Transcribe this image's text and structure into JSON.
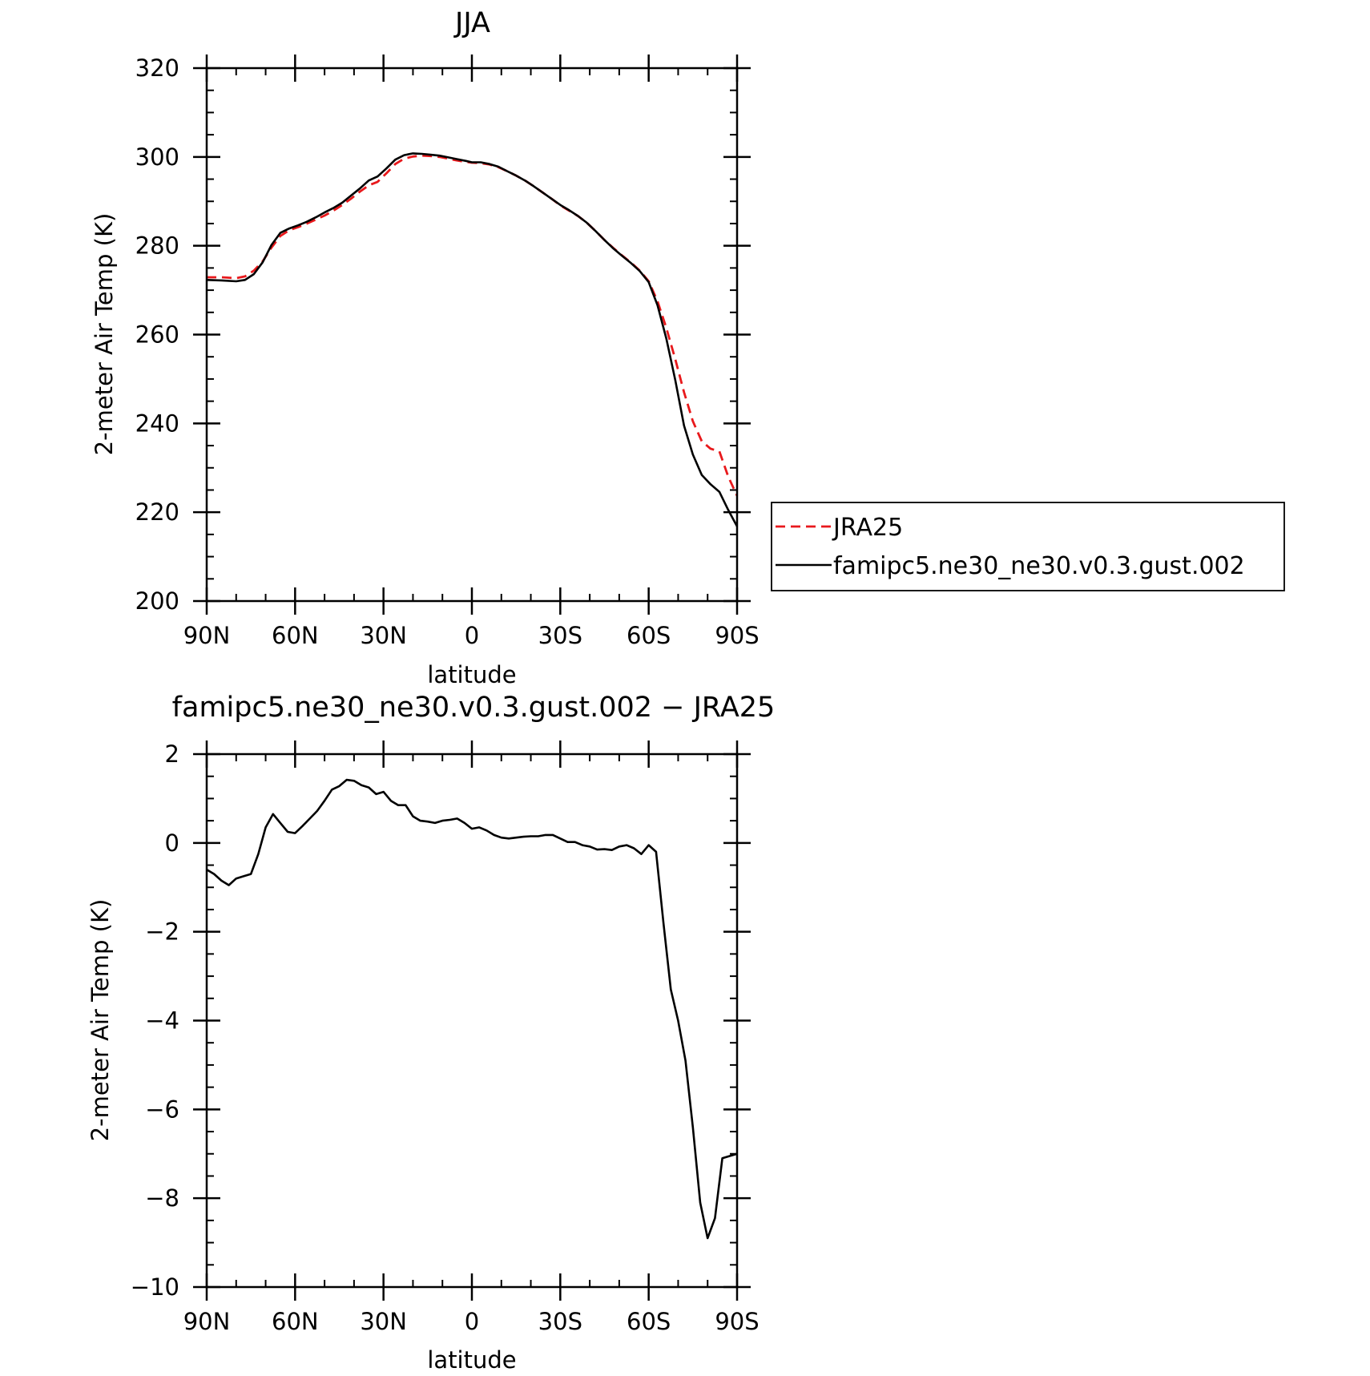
{
  "chart_data": [
    {
      "type": "line",
      "title": "JJA",
      "xlabel": "latitude",
      "ylabel": "2-meter Air Temp (K)",
      "xlim": [
        90,
        -90
      ],
      "ylim": [
        200,
        320
      ],
      "x_ticks": [
        90,
        60,
        30,
        0,
        -30,
        -60,
        -90
      ],
      "x_tick_labels": [
        "90N",
        "60N",
        "30N",
        "0",
        "30S",
        "60S",
        "90S"
      ],
      "y_ticks": [
        200,
        220,
        240,
        260,
        280,
        300,
        320
      ],
      "y_tick_labels": [
        "200",
        "220",
        "240",
        "260",
        "280",
        "300",
        "320"
      ],
      "legend": "right",
      "series": [
        {
          "name": "JRA25",
          "color": "#e8191c",
          "dash": "dashed",
          "x": [
            90,
            85,
            80,
            77,
            74,
            71,
            68,
            65,
            62,
            59,
            56,
            53,
            50,
            47,
            44,
            41,
            38,
            35,
            32,
            29,
            26,
            23,
            20,
            17,
            14,
            11,
            8,
            5,
            2,
            0,
            -3,
            -6,
            -9,
            -12,
            -15,
            -18,
            -21,
            -24,
            -27,
            -30,
            -33,
            -36,
            -39,
            -42,
            -45,
            -48,
            -51,
            -54,
            -57,
            -60,
            -63,
            -66,
            -69,
            -72,
            -75,
            -78,
            -81,
            -84,
            -87,
            -90
          ],
          "values": [
            272.9,
            272.9,
            272.7,
            273.1,
            274.4,
            276.5,
            279.6,
            282.2,
            283.5,
            284.2,
            285.0,
            285.9,
            286.8,
            287.9,
            289.2,
            290.6,
            292.2,
            293.6,
            294.4,
            296.3,
            298.4,
            299.6,
            300.1,
            300.3,
            300.2,
            300.0,
            299.6,
            299.2,
            298.9,
            298.7,
            298.6,
            298.3,
            297.7,
            296.8,
            295.8,
            294.7,
            293.4,
            292.0,
            290.6,
            289.1,
            287.9,
            286.7,
            285.2,
            283.3,
            281.3,
            279.5,
            277.8,
            276.2,
            274.4,
            272.0,
            267.5,
            261.5,
            254.5,
            247.0,
            240.5,
            236.0,
            234.3,
            233.7,
            228.0,
            223.7
          ]
        },
        {
          "name": "famipc5.ne30_ne30.v0.3.gust.002",
          "color": "#000000",
          "dash": "solid",
          "x": [
            90,
            85,
            80,
            77,
            74,
            71,
            68,
            65,
            62,
            59,
            56,
            53,
            50,
            47,
            44,
            41,
            38,
            35,
            32,
            29,
            26,
            23,
            20,
            17,
            14,
            11,
            8,
            5,
            2,
            0,
            -3,
            -6,
            -9,
            -12,
            -15,
            -18,
            -21,
            -24,
            -27,
            -30,
            -33,
            -36,
            -39,
            -42,
            -45,
            -48,
            -51,
            -54,
            -57,
            -60,
            -63,
            -66,
            -69,
            -72,
            -75,
            -78,
            -81,
            -84,
            -87,
            -90
          ],
          "values": [
            272.3,
            272.2,
            272.0,
            272.3,
            273.6,
            276.3,
            280.2,
            282.9,
            283.9,
            284.6,
            285.4,
            286.4,
            287.5,
            288.5,
            289.7,
            291.3,
            292.9,
            294.7,
            295.6,
            297.4,
            299.4,
            300.4,
            300.8,
            300.7,
            300.5,
            300.3,
            299.9,
            299.5,
            299.1,
            298.8,
            298.8,
            298.4,
            297.8,
            296.8,
            295.8,
            294.7,
            293.4,
            292.0,
            290.6,
            289.2,
            288.0,
            286.7,
            285.2,
            283.3,
            281.3,
            279.4,
            277.7,
            276.1,
            274.3,
            271.8,
            266.6,
            259.1,
            249.8,
            239.5,
            233.0,
            228.4,
            226.3,
            224.6,
            220.5,
            216.8
          ]
        }
      ]
    },
    {
      "type": "line",
      "title": "famipc5.ne30_ne30.v0.3.gust.002 − JRA25",
      "xlabel": "latitude",
      "ylabel": "2-meter Air Temp (K)",
      "xlim": [
        90,
        -90
      ],
      "ylim": [
        -10,
        2
      ],
      "x_ticks": [
        90,
        60,
        30,
        0,
        -30,
        -60,
        -90
      ],
      "x_tick_labels": [
        "90N",
        "60N",
        "30N",
        "0",
        "30S",
        "60S",
        "90S"
      ],
      "y_ticks": [
        -10,
        -8,
        -6,
        -4,
        -2,
        0,
        2
      ],
      "y_tick_labels": [
        "−10",
        "−8",
        "−6",
        "−4",
        "−2",
        "0",
        "2"
      ],
      "series": [
        {
          "color": "#000000",
          "dash": "solid",
          "x": [
            90,
            87.5,
            85,
            82.5,
            80,
            77.5,
            75,
            72.5,
            70,
            67.5,
            65,
            62.5,
            60,
            57.5,
            55,
            52.5,
            50,
            47.5,
            45,
            42.5,
            40,
            37.5,
            35,
            32.5,
            30,
            27.5,
            25,
            22.5,
            20,
            17.5,
            15,
            12.5,
            10,
            7.5,
            5,
            2.5,
            0,
            -2.5,
            -5,
            -7.5,
            -10,
            -12.5,
            -15,
            -17.5,
            -20,
            -22.5,
            -25,
            -27.5,
            -30,
            -32.5,
            -35,
            -37.5,
            -40,
            -42.5,
            -45,
            -47.5,
            -50,
            -52.5,
            -55,
            -57.5,
            -60,
            -62.5,
            -65,
            -67.5,
            -70,
            -72.5,
            -75,
            -77.5,
            -80,
            -82.5,
            -85,
            -87.5,
            -90
          ],
          "values": [
            -0.6,
            -0.7,
            -0.85,
            -0.95,
            -0.8,
            -0.75,
            -0.7,
            -0.25,
            0.35,
            0.65,
            0.45,
            0.25,
            0.22,
            0.38,
            0.55,
            0.72,
            0.95,
            1.2,
            1.28,
            1.42,
            1.4,
            1.3,
            1.25,
            1.1,
            1.15,
            0.95,
            0.85,
            0.85,
            0.6,
            0.5,
            0.48,
            0.45,
            0.5,
            0.52,
            0.55,
            0.45,
            0.32,
            0.35,
            0.28,
            0.18,
            0.12,
            0.1,
            0.12,
            0.14,
            0.15,
            0.15,
            0.18,
            0.18,
            0.1,
            0.02,
            0.02,
            -0.05,
            -0.08,
            -0.15,
            -0.14,
            -0.16,
            -0.08,
            -0.05,
            -0.12,
            -0.25,
            -0.05,
            -0.2,
            -1.8,
            -3.3,
            -4.0,
            -4.9,
            -6.4,
            -8.1,
            -8.9,
            -8.45,
            -7.1,
            -7.05,
            -7.0
          ]
        }
      ]
    }
  ]
}
